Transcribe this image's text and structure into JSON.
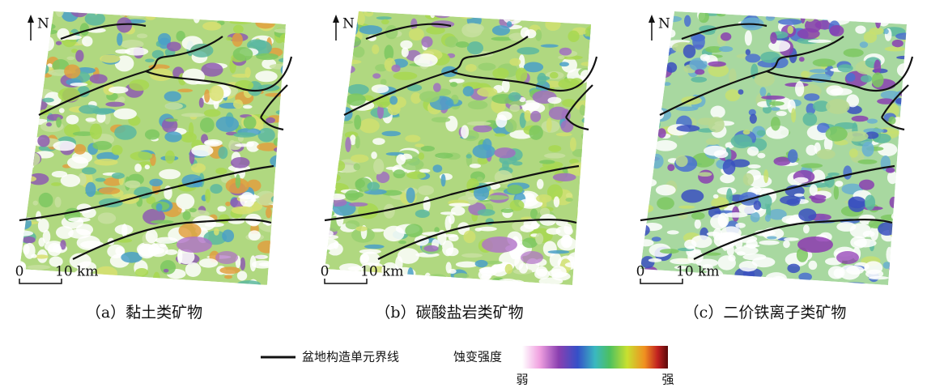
{
  "panels": [
    {
      "north": "N",
      "scale": {
        "start": "0",
        "end": "10 km"
      },
      "caption": "（a）黏土类矿物"
    },
    {
      "north": "N",
      "scale": {
        "start": "0",
        "end": "10 km"
      },
      "caption": "（b）碳酸盐岩类矿物"
    },
    {
      "north": "N",
      "scale": {
        "start": "0",
        "end": "10 km"
      },
      "caption": "（c）二价铁离子类矿物"
    }
  ],
  "legend": {
    "boundary": "盆地构造单元界线",
    "intensity": {
      "title": "蚀变强度",
      "low": "弱",
      "high": "强"
    }
  }
}
